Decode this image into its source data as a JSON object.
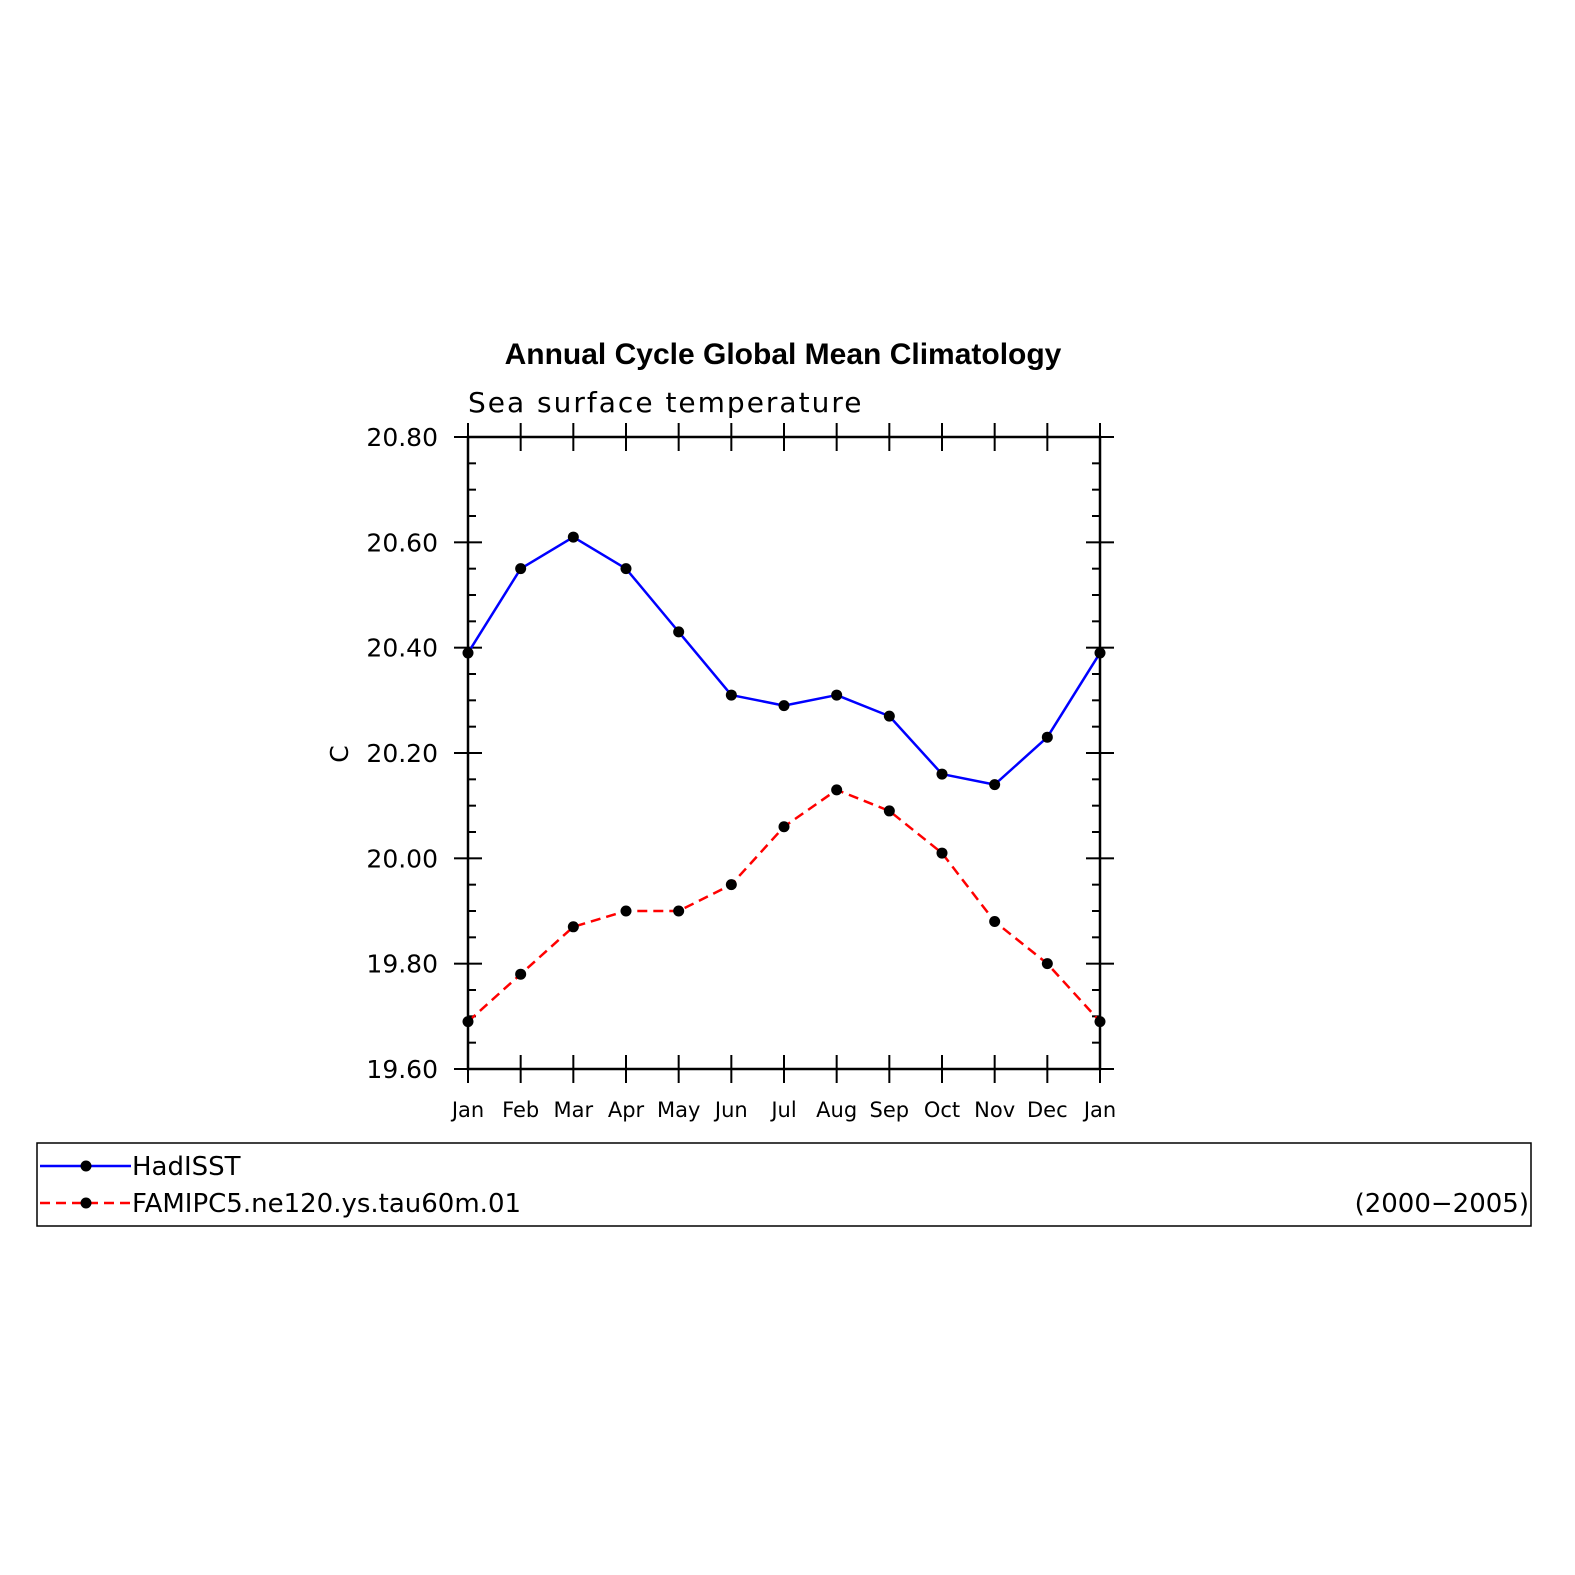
{
  "chart_data": {
    "type": "line",
    "title": "Annual Cycle Global Mean Climatology",
    "subtitle": "Sea surface temperature",
    "ylabel": "C",
    "xlabel": "",
    "categories": [
      "Jan",
      "Feb",
      "Mar",
      "Apr",
      "May",
      "Jun",
      "Jul",
      "Aug",
      "Sep",
      "Oct",
      "Nov",
      "Dec",
      "Jan"
    ],
    "ylim": [
      19.6,
      20.8
    ],
    "yticks": [
      "20.80",
      "20.60",
      "20.40",
      "20.20",
      "20.00",
      "19.80",
      "19.60"
    ],
    "series": [
      {
        "name": "HadISST",
        "color": "#0000ff",
        "line_style": "solid",
        "marker": "filled-circle",
        "values": [
          20.39,
          20.55,
          20.61,
          20.55,
          20.43,
          20.31,
          20.29,
          20.31,
          20.27,
          20.16,
          20.14,
          20.23,
          20.39
        ]
      },
      {
        "name": "FAMIPC5.ne120.ys.tau60m.01",
        "color": "#ff0000",
        "line_style": "dashed",
        "marker": "filled-circle",
        "values": [
          19.69,
          19.78,
          19.87,
          19.9,
          19.9,
          19.95,
          20.06,
          20.13,
          20.09,
          20.01,
          19.88,
          19.8,
          19.69
        ]
      }
    ],
    "legend_position": "bottom",
    "legend_note": "(2000−2005)",
    "grid": false
  }
}
